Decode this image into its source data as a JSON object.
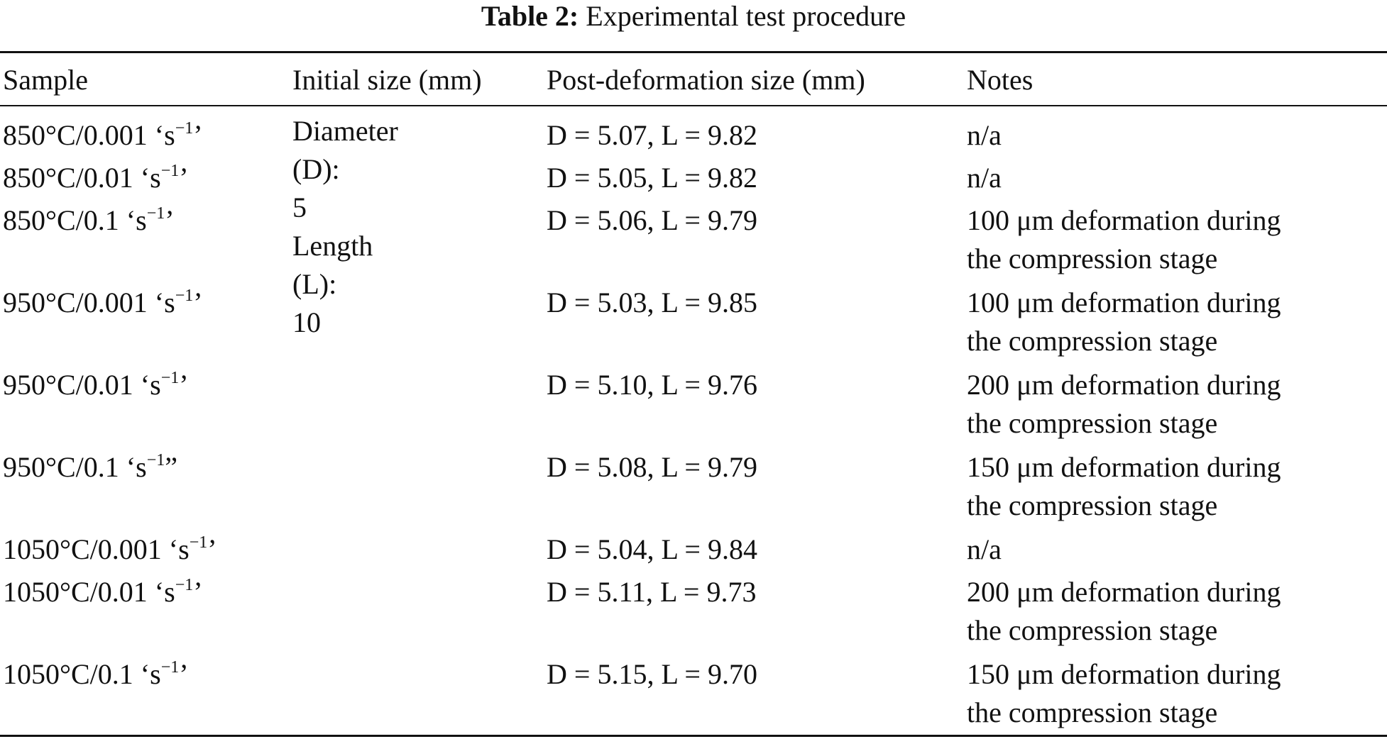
{
  "caption": {
    "label": "Table 2:",
    "text": "Experimental test procedure"
  },
  "columns": {
    "sample": "Sample",
    "initial": "Initial size (mm)",
    "post": "Post-deformation size (mm)",
    "notes": "Notes"
  },
  "initial_size": {
    "line1": "Diameter",
    "line2": "(D):",
    "line3": "5",
    "line4": "Length",
    "line5": "(L):",
    "line6": "10"
  },
  "rows": [
    {
      "temp": "850°C/0.001 ‘s",
      "exp": "−1",
      "close": "’",
      "post": "D = 5.07, L = 9.82",
      "note1": "n/a",
      "note2": ""
    },
    {
      "temp": "850°C/0.01 ‘s",
      "exp": "−1",
      "close": "’",
      "post": "D = 5.05, L = 9.82",
      "note1": "n/a",
      "note2": ""
    },
    {
      "temp": "850°C/0.1 ‘s",
      "exp": "−1",
      "close": "’",
      "post": "D = 5.06, L = 9.79",
      "note1": "100 μm deformation during",
      "note2": "the compression stage"
    },
    {
      "temp": "950°C/0.001 ‘s",
      "exp": "−1",
      "close": "’",
      "post": "D = 5.03, L = 9.85",
      "note1": "100 μm deformation during",
      "note2": "the compression stage"
    },
    {
      "temp": "950°C/0.01 ‘s",
      "exp": "−1",
      "close": "’",
      "post": "D = 5.10, L = 9.76",
      "note1": "200 μm deformation during",
      "note2": "the compression stage"
    },
    {
      "temp": "950°C/0.1 ‘s",
      "exp": "−1",
      "close": "”",
      "post": "D = 5.08, L = 9.79",
      "note1": "150 μm deformation during",
      "note2": "the compression stage"
    },
    {
      "temp": "1050°C/0.001 ‘s",
      "exp": "−1",
      "close": "’",
      "post": "D = 5.04, L = 9.84",
      "note1": "n/a",
      "note2": ""
    },
    {
      "temp": "1050°C/0.01 ‘s",
      "exp": "−1",
      "close": "’",
      "post": "D = 5.11, L = 9.73",
      "note1": "200 μm deformation during",
      "note2": "the compression stage"
    },
    {
      "temp": "1050°C/0.1 ‘s",
      "exp": "−1",
      "close": "’",
      "post": "D = 5.15, L = 9.70",
      "note1": "150 μm deformation during",
      "note2": "the compression stage"
    }
  ]
}
